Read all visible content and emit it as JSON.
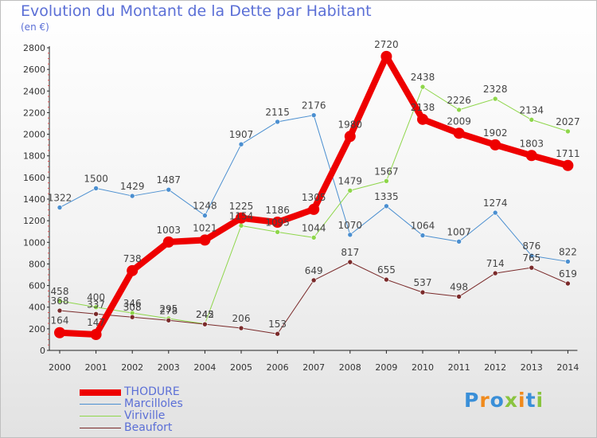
{
  "chart_data": {
    "type": "line",
    "title": "Evolution du Montant de la Dette par Habitant",
    "subtitle": "(en €)",
    "x": [
      "2000",
      "2001",
      "2002",
      "2003",
      "2004",
      "2005",
      "2006",
      "2007",
      "2008",
      "2009",
      "2010",
      "2011",
      "2012",
      "2013",
      "2014"
    ],
    "ylim": [
      0,
      2800
    ],
    "yticks": [
      0,
      200,
      400,
      600,
      800,
      1000,
      1200,
      1400,
      1600,
      1800,
      2000,
      2200,
      2400,
      2600,
      2800
    ],
    "grid": false,
    "legend_position": "bottom-left",
    "series": [
      {
        "name": "THODURE",
        "color": "#ee0000",
        "values": [
          164,
          147,
          738,
          1003,
          1021,
          1225,
          1186,
          1305,
          1980,
          2720,
          2138,
          2009,
          1902,
          1803,
          1711
        ],
        "labels": [
          "164",
          "147",
          "738",
          "1003",
          "1021",
          "1225",
          "1186",
          "1305",
          "1980",
          "2720",
          "2138",
          "2009",
          "1902",
          "1803",
          "1711"
        ]
      },
      {
        "name": "Marcilloles",
        "color": "#4b8fd0",
        "values": [
          1322,
          1500,
          1429,
          1487,
          1248,
          1907,
          2115,
          2176,
          1070,
          1335,
          1064,
          1007,
          1274,
          876,
          822
        ],
        "labels": [
          "1322",
          "1500",
          "1429",
          "1487",
          "1248",
          "1907",
          "2115",
          "2176",
          "1070",
          "1335",
          "1064",
          "1007",
          "1274",
          "876",
          "822"
        ]
      },
      {
        "name": "Viriville",
        "color": "#8ed64a",
        "values": [
          458,
          400,
          346,
          295,
          245,
          1154,
          1095,
          1044,
          1479,
          1567,
          2438,
          2226,
          2328,
          2134,
          2027
        ],
        "labels": [
          "458",
          "400",
          "346",
          "295",
          "245",
          "1154",
          "1095",
          "1044",
          "1479",
          "1567",
          "2438",
          "2226",
          "2328",
          "2134",
          "2027"
        ]
      },
      {
        "name": "Beaufort",
        "color": "#7a2a2a",
        "values": [
          368,
          337,
          308,
          278,
          242,
          206,
          153,
          649,
          817,
          655,
          537,
          498,
          714,
          765,
          619
        ],
        "labels": [
          "368",
          "337",
          "308",
          "278",
          "242",
          "206",
          "153",
          "649",
          "817",
          "655",
          "537",
          "498",
          "714",
          "765",
          "619"
        ]
      }
    ]
  },
  "logo": {
    "text": "Proxiti"
  }
}
